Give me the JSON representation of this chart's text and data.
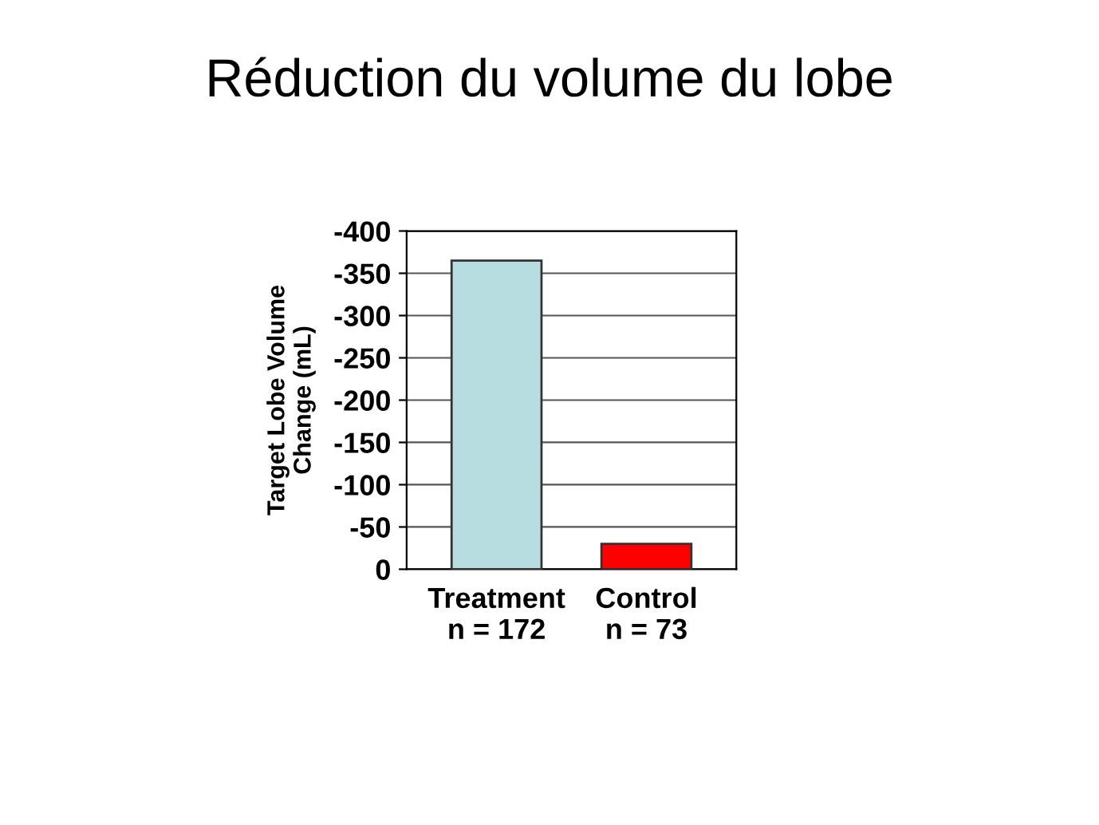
{
  "chart_data": {
    "type": "bar",
    "title": "Réduction du volume du lobe",
    "ylabel": "Target Lobe Volume\nChange (mL)",
    "categories": [
      "Treatment\nn = 172",
      "Control\nn = 73"
    ],
    "values": [
      -365,
      -30
    ],
    "colors": [
      "#b8dde1",
      "#ff0000"
    ],
    "ylim": [
      0,
      -400
    ],
    "yticks": [
      0,
      -50,
      -100,
      -150,
      -200,
      -250,
      -300,
      -350,
      -400
    ],
    "grid": "y"
  }
}
